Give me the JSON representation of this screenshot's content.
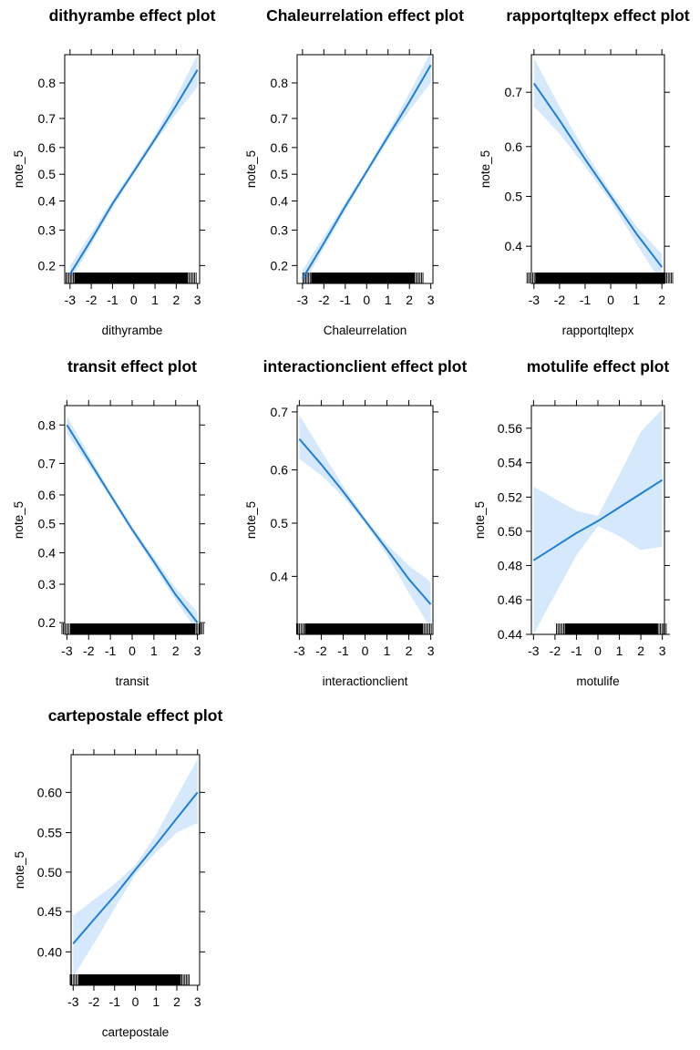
{
  "colors": {
    "line": "#1f7ed6",
    "band": "#d6e9fc",
    "frame": "#000000",
    "rug": "#000000"
  },
  "chart_data": [
    {
      "type": "line",
      "title": "dithyrambe effect plot",
      "xlabel": "dithyrambe",
      "ylabel": "note_5",
      "scale": "logit",
      "xlim": [
        -3.25,
        3.1
      ],
      "ylim": [
        0.16,
        0.86
      ],
      "xticks": [
        -3,
        -2,
        -1,
        0,
        1,
        2,
        3
      ],
      "yticks": [
        0.2,
        0.3,
        0.4,
        0.5,
        0.6,
        0.7,
        0.8
      ],
      "ytick_labels": [
        "0.2",
        "0.3",
        "0.4",
        "0.5",
        "0.6",
        "0.7",
        "0.8"
      ],
      "x": [
        -3,
        -2,
        -1,
        0,
        1,
        2,
        3
      ],
      "fit": [
        0.18,
        0.27,
        0.39,
        0.51,
        0.63,
        0.74,
        0.83
      ],
      "lower": [
        0.165,
        0.255,
        0.375,
        0.5,
        0.62,
        0.715,
        0.79
      ],
      "upper": [
        0.2,
        0.29,
        0.405,
        0.525,
        0.645,
        0.765,
        0.86
      ],
      "rug": [
        -2.8,
        2.55
      ]
    },
    {
      "type": "line",
      "title": "Chaleurrelation effect plot",
      "xlabel": "Chaleurrelation",
      "ylabel": "note_5",
      "scale": "logit",
      "xlim": [
        -3.25,
        3.1
      ],
      "ylim": [
        0.16,
        0.86
      ],
      "xticks": [
        -3,
        -2,
        -1,
        0,
        1,
        2,
        3
      ],
      "yticks": [
        0.2,
        0.3,
        0.4,
        0.5,
        0.6,
        0.7,
        0.8
      ],
      "ytick_labels": [
        "0.2",
        "0.3",
        "0.4",
        "0.5",
        "0.6",
        "0.7",
        "0.8"
      ],
      "x": [
        -3,
        -2,
        -1,
        0,
        1,
        2,
        3
      ],
      "fit": [
        0.17,
        0.26,
        0.38,
        0.51,
        0.64,
        0.75,
        0.84
      ],
      "lower": [
        0.155,
        0.245,
        0.365,
        0.5,
        0.625,
        0.725,
        0.8
      ],
      "upper": [
        0.19,
        0.28,
        0.395,
        0.52,
        0.655,
        0.775,
        0.865
      ],
      "rug": [
        -2.6,
        2.25
      ]
    },
    {
      "type": "line",
      "title": "rapportqltepx effect plot",
      "xlabel": "rapportqltepx",
      "ylabel": "note_5",
      "scale": "logit",
      "xlim": [
        -3.1,
        2.1
      ],
      "ylim": [
        0.33,
        0.76
      ],
      "xticks": [
        -3,
        -2,
        -1,
        0,
        1,
        2
      ],
      "yticks": [
        0.4,
        0.5,
        0.6,
        0.7
      ],
      "ytick_labels": [
        "0.4",
        "0.5",
        "0.6",
        "0.7"
      ],
      "x": [
        -3,
        -2,
        -1,
        0,
        1,
        2
      ],
      "fit": [
        0.715,
        0.65,
        0.575,
        0.5,
        0.425,
        0.36
      ],
      "lower": [
        0.675,
        0.625,
        0.56,
        0.49,
        0.405,
        0.33
      ],
      "upper": [
        0.755,
        0.675,
        0.59,
        0.51,
        0.44,
        0.385
      ],
      "rug": [
        -2.95,
        2.1
      ]
    },
    {
      "type": "line",
      "title": "transit effect plot",
      "xlabel": "transit",
      "ylabel": "note_5",
      "scale": "logit",
      "xlim": [
        -3.1,
        3.1
      ],
      "ylim": [
        0.175,
        0.84
      ],
      "xticks": [
        -3,
        -2,
        -1,
        0,
        1,
        2,
        3
      ],
      "yticks": [
        0.2,
        0.3,
        0.4,
        0.5,
        0.6,
        0.7,
        0.8
      ],
      "ytick_labels": [
        "0.2",
        "0.3",
        "0.4",
        "0.5",
        "0.6",
        "0.7",
        "0.8"
      ],
      "x": [
        -3,
        -2,
        -1,
        0,
        1,
        2,
        3
      ],
      "fit": [
        0.8,
        0.71,
        0.6,
        0.48,
        0.37,
        0.27,
        0.2
      ],
      "lower": [
        0.78,
        0.695,
        0.59,
        0.47,
        0.355,
        0.255,
        0.18
      ],
      "upper": [
        0.82,
        0.725,
        0.61,
        0.49,
        0.385,
        0.29,
        0.225
      ],
      "rug": [
        -2.85,
        2.9
      ]
    },
    {
      "type": "line",
      "title": "interactionclient effect plot",
      "xlabel": "interactionclient",
      "ylabel": "note_5",
      "scale": "logit",
      "xlim": [
        -3.1,
        3.1
      ],
      "ylim": [
        0.3,
        0.71
      ],
      "xticks": [
        -3,
        -2,
        -1,
        0,
        1,
        2,
        3
      ],
      "yticks": [
        0.4,
        0.5,
        0.6,
        0.7
      ],
      "ytick_labels": [
        "0.4",
        "0.5",
        "0.6",
        "0.7"
      ],
      "x": [
        -3,
        -2,
        -1,
        0,
        1,
        2,
        3
      ],
      "fit": [
        0.655,
        0.61,
        0.56,
        0.505,
        0.45,
        0.395,
        0.35
      ],
      "lower": [
        0.62,
        0.59,
        0.55,
        0.5,
        0.44,
        0.37,
        0.31
      ],
      "upper": [
        0.695,
        0.635,
        0.57,
        0.51,
        0.46,
        0.42,
        0.39
      ],
      "rug": [
        -2.75,
        2.65
      ]
    },
    {
      "type": "line",
      "title": "motulife effect plot",
      "xlabel": "motulife",
      "ylabel": "note_5",
      "scale": "logit",
      "xlim": [
        -3.1,
        3.1
      ],
      "ylim": [
        0.44,
        0.573
      ],
      "xticks": [
        -3,
        -2,
        -1,
        0,
        1,
        2,
        3
      ],
      "yticks": [
        0.44,
        0.46,
        0.48,
        0.5,
        0.52,
        0.54,
        0.56
      ],
      "ytick_labels": [
        "0.44",
        "0.46",
        "0.48",
        "0.50",
        "0.52",
        "0.54",
        "0.56"
      ],
      "x": [
        -3,
        -2,
        -1,
        0,
        1,
        2,
        3
      ],
      "fit": [
        0.483,
        0.491,
        0.499,
        0.506,
        0.514,
        0.522,
        0.53
      ],
      "lower": [
        0.44,
        0.463,
        0.486,
        0.503,
        0.497,
        0.489,
        0.491
      ],
      "upper": [
        0.526,
        0.519,
        0.512,
        0.509,
        0.533,
        0.558,
        0.571
      ],
      "rug": [
        -1.55,
        2.8
      ]
    },
    {
      "type": "line",
      "title": "cartepostale effect plot",
      "xlabel": "cartepostale",
      "ylabel": "note_5",
      "scale": "logit",
      "xlim": [
        -3.1,
        3.1
      ],
      "ylim": [
        0.36,
        0.645
      ],
      "xticks": [
        -3,
        -2,
        -1,
        0,
        1,
        2,
        3
      ],
      "yticks": [
        0.4,
        0.45,
        0.5,
        0.55,
        0.6
      ],
      "ytick_labels": [
        "0.40",
        "0.45",
        "0.50",
        "0.55",
        "0.60"
      ],
      "x": [
        -3,
        -2,
        -1,
        0,
        1,
        2,
        3
      ],
      "fit": [
        0.41,
        0.44,
        0.47,
        0.503,
        0.535,
        0.568,
        0.6
      ],
      "lower": [
        0.37,
        0.41,
        0.454,
        0.497,
        0.525,
        0.55,
        0.562
      ],
      "upper": [
        0.445,
        0.465,
        0.485,
        0.509,
        0.548,
        0.595,
        0.64
      ],
      "rug": [
        -2.75,
        2.2
      ]
    }
  ]
}
